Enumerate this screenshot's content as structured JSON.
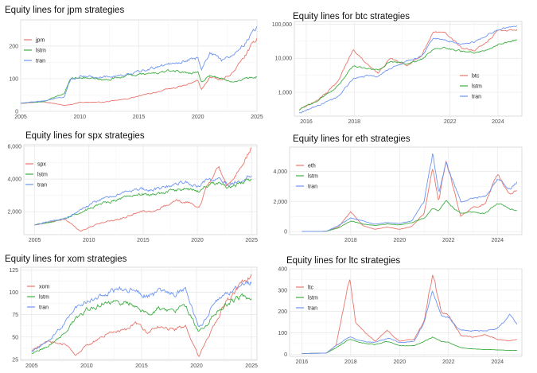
{
  "colors": {
    "red": "#E8766D",
    "green": "#3FAE43",
    "blue": "#6E95F2"
  },
  "chart_data": [
    {
      "type": "line",
      "title": "Equity lines for jpm strategies",
      "x_range": [
        2005,
        2025
      ],
      "x_ticks": [
        "2005",
        "2010",
        "2015",
        "2020",
        "2025"
      ],
      "ylim": [
        0,
        280
      ],
      "y_ticks": [
        "0",
        "100",
        "200"
      ],
      "y_scale": "linear",
      "legend_position": "top-left",
      "series": [
        {
          "name": "jpm",
          "color": "red",
          "x": [
            2005,
            2007,
            2008.7,
            2009.2,
            2010,
            2012,
            2014,
            2016,
            2018,
            2019,
            2020,
            2020.3,
            2021,
            2022,
            2023,
            2024,
            2025
          ],
          "values": [
            25,
            30,
            18,
            20,
            28,
            28,
            38,
            55,
            72,
            80,
            95,
            65,
            105,
            95,
            120,
            170,
            225
          ]
        },
        {
          "name": "lstm",
          "color": "green",
          "x": [
            2005,
            2007,
            2008.7,
            2009.2,
            2010,
            2012,
            2014,
            2016,
            2018,
            2019,
            2020,
            2020.3,
            2021,
            2022,
            2023,
            2024,
            2025
          ],
          "values": [
            25,
            30,
            55,
            100,
            105,
            95,
            110,
            115,
            125,
            118,
            120,
            90,
            110,
            100,
            92,
            100,
            105
          ]
        },
        {
          "name": "tran",
          "color": "blue",
          "x": [
            2005,
            2007,
            2008.7,
            2009.2,
            2010,
            2012,
            2014,
            2016,
            2018,
            2019,
            2020,
            2020.3,
            2021,
            2022,
            2023,
            2024,
            2025
          ],
          "values": [
            25,
            32,
            45,
            95,
            108,
            105,
            112,
            130,
            150,
            155,
            165,
            130,
            180,
            155,
            175,
            210,
            260
          ]
        }
      ]
    },
    {
      "type": "line",
      "title": "Equity lines for btc strategies",
      "x_range": [
        2015.5,
        2025
      ],
      "x_ticks": [
        "2016",
        "2018",
        "2022",
        "2024"
      ],
      "ylim": [
        200,
        120000
      ],
      "y_ticks": [
        "1,000",
        "10,000",
        "100,000"
      ],
      "y_tick_values": [
        1000,
        10000,
        100000
      ],
      "y_scale": "log",
      "legend_position": "right",
      "series": [
        {
          "name": "btc",
          "color": "red",
          "x": [
            2015.7,
            2016.5,
            2017.3,
            2017.95,
            2018.5,
            2019,
            2019.5,
            2020.2,
            2020.8,
            2021.3,
            2021.8,
            2022.5,
            2023,
            2023.5,
            2024,
            2024.8
          ],
          "values": [
            300,
            600,
            2000,
            18000,
            7000,
            3500,
            10000,
            6000,
            12000,
            58000,
            60000,
            20000,
            17000,
            28000,
            65000,
            70000
          ]
        },
        {
          "name": "lstm",
          "color": "green",
          "x": [
            2015.7,
            2016.5,
            2017.3,
            2017.95,
            2018.5,
            2019,
            2019.5,
            2020.2,
            2020.8,
            2021.3,
            2021.8,
            2022.5,
            2023,
            2023.5,
            2024,
            2024.8
          ],
          "values": [
            300,
            600,
            1500,
            6000,
            5000,
            4500,
            8000,
            7000,
            9000,
            18000,
            20000,
            16000,
            15000,
            17000,
            25000,
            35000
          ]
        },
        {
          "name": "tran",
          "color": "blue",
          "x": [
            2015.7,
            2016.5,
            2017.3,
            2017.95,
            2018.5,
            2019,
            2019.5,
            2020.2,
            2020.8,
            2021.3,
            2021.8,
            2022.5,
            2023,
            2023.5,
            2024,
            2024.8
          ],
          "values": [
            250,
            400,
            700,
            2500,
            3000,
            3000,
            5000,
            8000,
            11000,
            40000,
            35000,
            25000,
            30000,
            45000,
            70000,
            90000
          ]
        }
      ]
    },
    {
      "type": "line",
      "title": "Equity lines for spx strategies",
      "x_range": [
        2004,
        2025.5
      ],
      "x_ticks": [
        "2005",
        "2010",
        "2015",
        "2020",
        "2025"
      ],
      "ylim": [
        600,
        6100
      ],
      "y_ticks": [
        "2,000",
        "4,000",
        "6,000"
      ],
      "y_scale": "linear",
      "legend_position": "top-left",
      "series": [
        {
          "name": "spx",
          "color": "red",
          "x": [
            2005,
            2007.8,
            2009.2,
            2011,
            2013,
            2015,
            2016,
            2018,
            2019,
            2020.2,
            2020.8,
            2022,
            2022.8,
            2024,
            2025
          ],
          "values": [
            1200,
            1550,
            800,
            1300,
            1600,
            2050,
            2000,
            2700,
            2600,
            2300,
            3400,
            4700,
            3600,
            4800,
            5900
          ]
        },
        {
          "name": "lstm",
          "color": "green",
          "x": [
            2005,
            2007.8,
            2009.2,
            2011,
            2013,
            2015,
            2016,
            2018,
            2019,
            2020.2,
            2020.8,
            2022,
            2022.8,
            2024,
            2025
          ],
          "values": [
            1200,
            1550,
            2000,
            2450,
            2800,
            3050,
            3000,
            3350,
            3400,
            3200,
            3600,
            3800,
            3500,
            3700,
            4000
          ]
        },
        {
          "name": "tran",
          "color": "blue",
          "x": [
            2005,
            2007.8,
            2009.2,
            2011,
            2013,
            2015,
            2016,
            2018,
            2019,
            2020.2,
            2020.8,
            2022,
            2022.8,
            2024,
            2025
          ],
          "values": [
            1200,
            1600,
            2100,
            2750,
            3100,
            3400,
            3350,
            3700,
            3800,
            3500,
            3950,
            4000,
            3700,
            3900,
            4200
          ]
        }
      ]
    },
    {
      "type": "line",
      "title": "Equity lines for eth strategies",
      "x_range": [
        2015.5,
        2025
      ],
      "x_ticks": [
        "2018",
        "2020",
        "2022",
        "2024"
      ],
      "ylim": [
        -200,
        5600
      ],
      "y_ticks": [
        "0",
        "2,000",
        "4,000"
      ],
      "y_scale": "linear",
      "legend_position": "top-left",
      "series": [
        {
          "name": "eth",
          "color": "red",
          "x": [
            2016,
            2017,
            2017.5,
            2018,
            2018.5,
            2019,
            2019.5,
            2020,
            2020.5,
            2021,
            2021.35,
            2021.6,
            2021.9,
            2022.5,
            2023,
            2023.5,
            2024,
            2024.5,
            2024.8
          ],
          "values": [
            10,
            20,
            300,
            1300,
            400,
            150,
            300,
            150,
            350,
            1200,
            4200,
            2000,
            4800,
            1000,
            1600,
            1800,
            3800,
            2500,
            2700
          ]
        },
        {
          "name": "lstm",
          "color": "green",
          "x": [
            2016,
            2017,
            2017.5,
            2018,
            2018.5,
            2019,
            2019.5,
            2020,
            2020.5,
            2021,
            2021.35,
            2021.6,
            2021.9,
            2022.5,
            2023,
            2023.5,
            2024,
            2024.5,
            2024.8
          ],
          "values": [
            10,
            20,
            250,
            700,
            500,
            400,
            500,
            450,
            600,
            900,
            1500,
            1400,
            2000,
            1200,
            1300,
            1200,
            1900,
            1500,
            1400
          ]
        },
        {
          "name": "tran",
          "color": "blue",
          "x": [
            2016,
            2017,
            2017.5,
            2018,
            2018.5,
            2019,
            2019.5,
            2020,
            2020.5,
            2021,
            2021.35,
            2021.6,
            2021.9,
            2022.5,
            2023,
            2023.5,
            2024,
            2024.5,
            2024.8
          ],
          "values": [
            10,
            20,
            400,
            900,
            700,
            500,
            600,
            550,
            700,
            2000,
            5300,
            2500,
            4500,
            2000,
            2200,
            2300,
            3500,
            2800,
            3300
          ]
        }
      ]
    },
    {
      "type": "line",
      "title": "Equity lines for xom strategies",
      "x_range": [
        2004,
        2025.5
      ],
      "x_ticks": [
        "2005",
        "2010",
        "2015",
        "2020",
        "2025"
      ],
      "ylim": [
        24,
        128
      ],
      "y_ticks": [
        "25",
        "50",
        "75",
        "100",
        "125"
      ],
      "y_scale": "linear",
      "legend_position": "top-left",
      "series": [
        {
          "name": "xom",
          "color": "red",
          "x": [
            2005,
            2006.5,
            2008,
            2009,
            2010,
            2012,
            2013.5,
            2014.5,
            2015.5,
            2016.5,
            2018,
            2019,
            2020.2,
            2020.8,
            2021.5,
            2022.5,
            2024,
            2025
          ],
          "values": [
            35,
            45,
            42,
            30,
            40,
            55,
            58,
            65,
            55,
            62,
            58,
            62,
            28,
            45,
            60,
            85,
            110,
            120
          ]
        },
        {
          "name": "lstm",
          "color": "green",
          "x": [
            2005,
            2006.5,
            2008,
            2009,
            2010,
            2012,
            2013.5,
            2014.5,
            2015.5,
            2016.5,
            2018,
            2019,
            2020.2,
            2020.8,
            2021.5,
            2022.5,
            2024,
            2025
          ],
          "values": [
            32,
            40,
            55,
            70,
            80,
            90,
            88,
            85,
            75,
            82,
            80,
            85,
            55,
            60,
            75,
            85,
            95,
            93
          ]
        },
        {
          "name": "tran",
          "color": "blue",
          "x": [
            2005,
            2006.5,
            2008,
            2009,
            2010,
            2012,
            2013.5,
            2014.5,
            2015.5,
            2016.5,
            2018,
            2019,
            2020.2,
            2020.8,
            2021.5,
            2022.5,
            2024,
            2025
          ],
          "values": [
            33,
            45,
            65,
            85,
            90,
            100,
            105,
            102,
            95,
            100,
            98,
            103,
            60,
            70,
            85,
            98,
            108,
            110
          ]
        }
      ]
    },
    {
      "type": "line",
      "title": "Equity lines for ltc strategies",
      "x_range": [
        2015.5,
        2025
      ],
      "x_ticks": [
        "2016",
        "2018",
        "2020",
        "2022",
        "2024"
      ],
      "ylim": [
        -10,
        400
      ],
      "y_ticks": [
        "0",
        "100",
        "200",
        "300",
        "400"
      ],
      "y_scale": "linear",
      "legend_position": "top-left",
      "series": [
        {
          "name": "ltc",
          "color": "red",
          "x": [
            2016,
            2017,
            2017.4,
            2017.95,
            2018.2,
            2018.6,
            2019,
            2019.5,
            2020,
            2020.6,
            2021,
            2021.35,
            2021.7,
            2022,
            2022.5,
            2023,
            2023.5,
            2024,
            2024.5,
            2024.8
          ],
          "values": [
            3,
            5,
            40,
            360,
            150,
            100,
            60,
            110,
            60,
            70,
            150,
            380,
            200,
            180,
            90,
            80,
            90,
            70,
            60,
            70
          ]
        },
        {
          "name": "lstm",
          "color": "green",
          "x": [
            2016,
            2017,
            2017.4,
            2017.95,
            2018.2,
            2018.6,
            2019,
            2019.5,
            2020,
            2020.6,
            2021,
            2021.35,
            2021.7,
            2022,
            2022.5,
            2023,
            2023.5,
            2024,
            2024.5,
            2024.8
          ],
          "values": [
            3,
            5,
            30,
            70,
            60,
            50,
            45,
            60,
            40,
            40,
            60,
            80,
            60,
            55,
            30,
            25,
            22,
            20,
            18,
            18
          ]
        },
        {
          "name": "tran",
          "color": "blue",
          "x": [
            2016,
            2017,
            2017.4,
            2017.95,
            2018.2,
            2018.6,
            2019,
            2019.5,
            2020,
            2020.6,
            2021,
            2021.35,
            2021.7,
            2022,
            2022.5,
            2023,
            2023.5,
            2024,
            2024.5,
            2024.8
          ],
          "values": [
            3,
            5,
            40,
            80,
            70,
            60,
            55,
            75,
            55,
            60,
            150,
            300,
            180,
            170,
            110,
            110,
            110,
            120,
            180,
            140
          ]
        }
      ]
    }
  ]
}
